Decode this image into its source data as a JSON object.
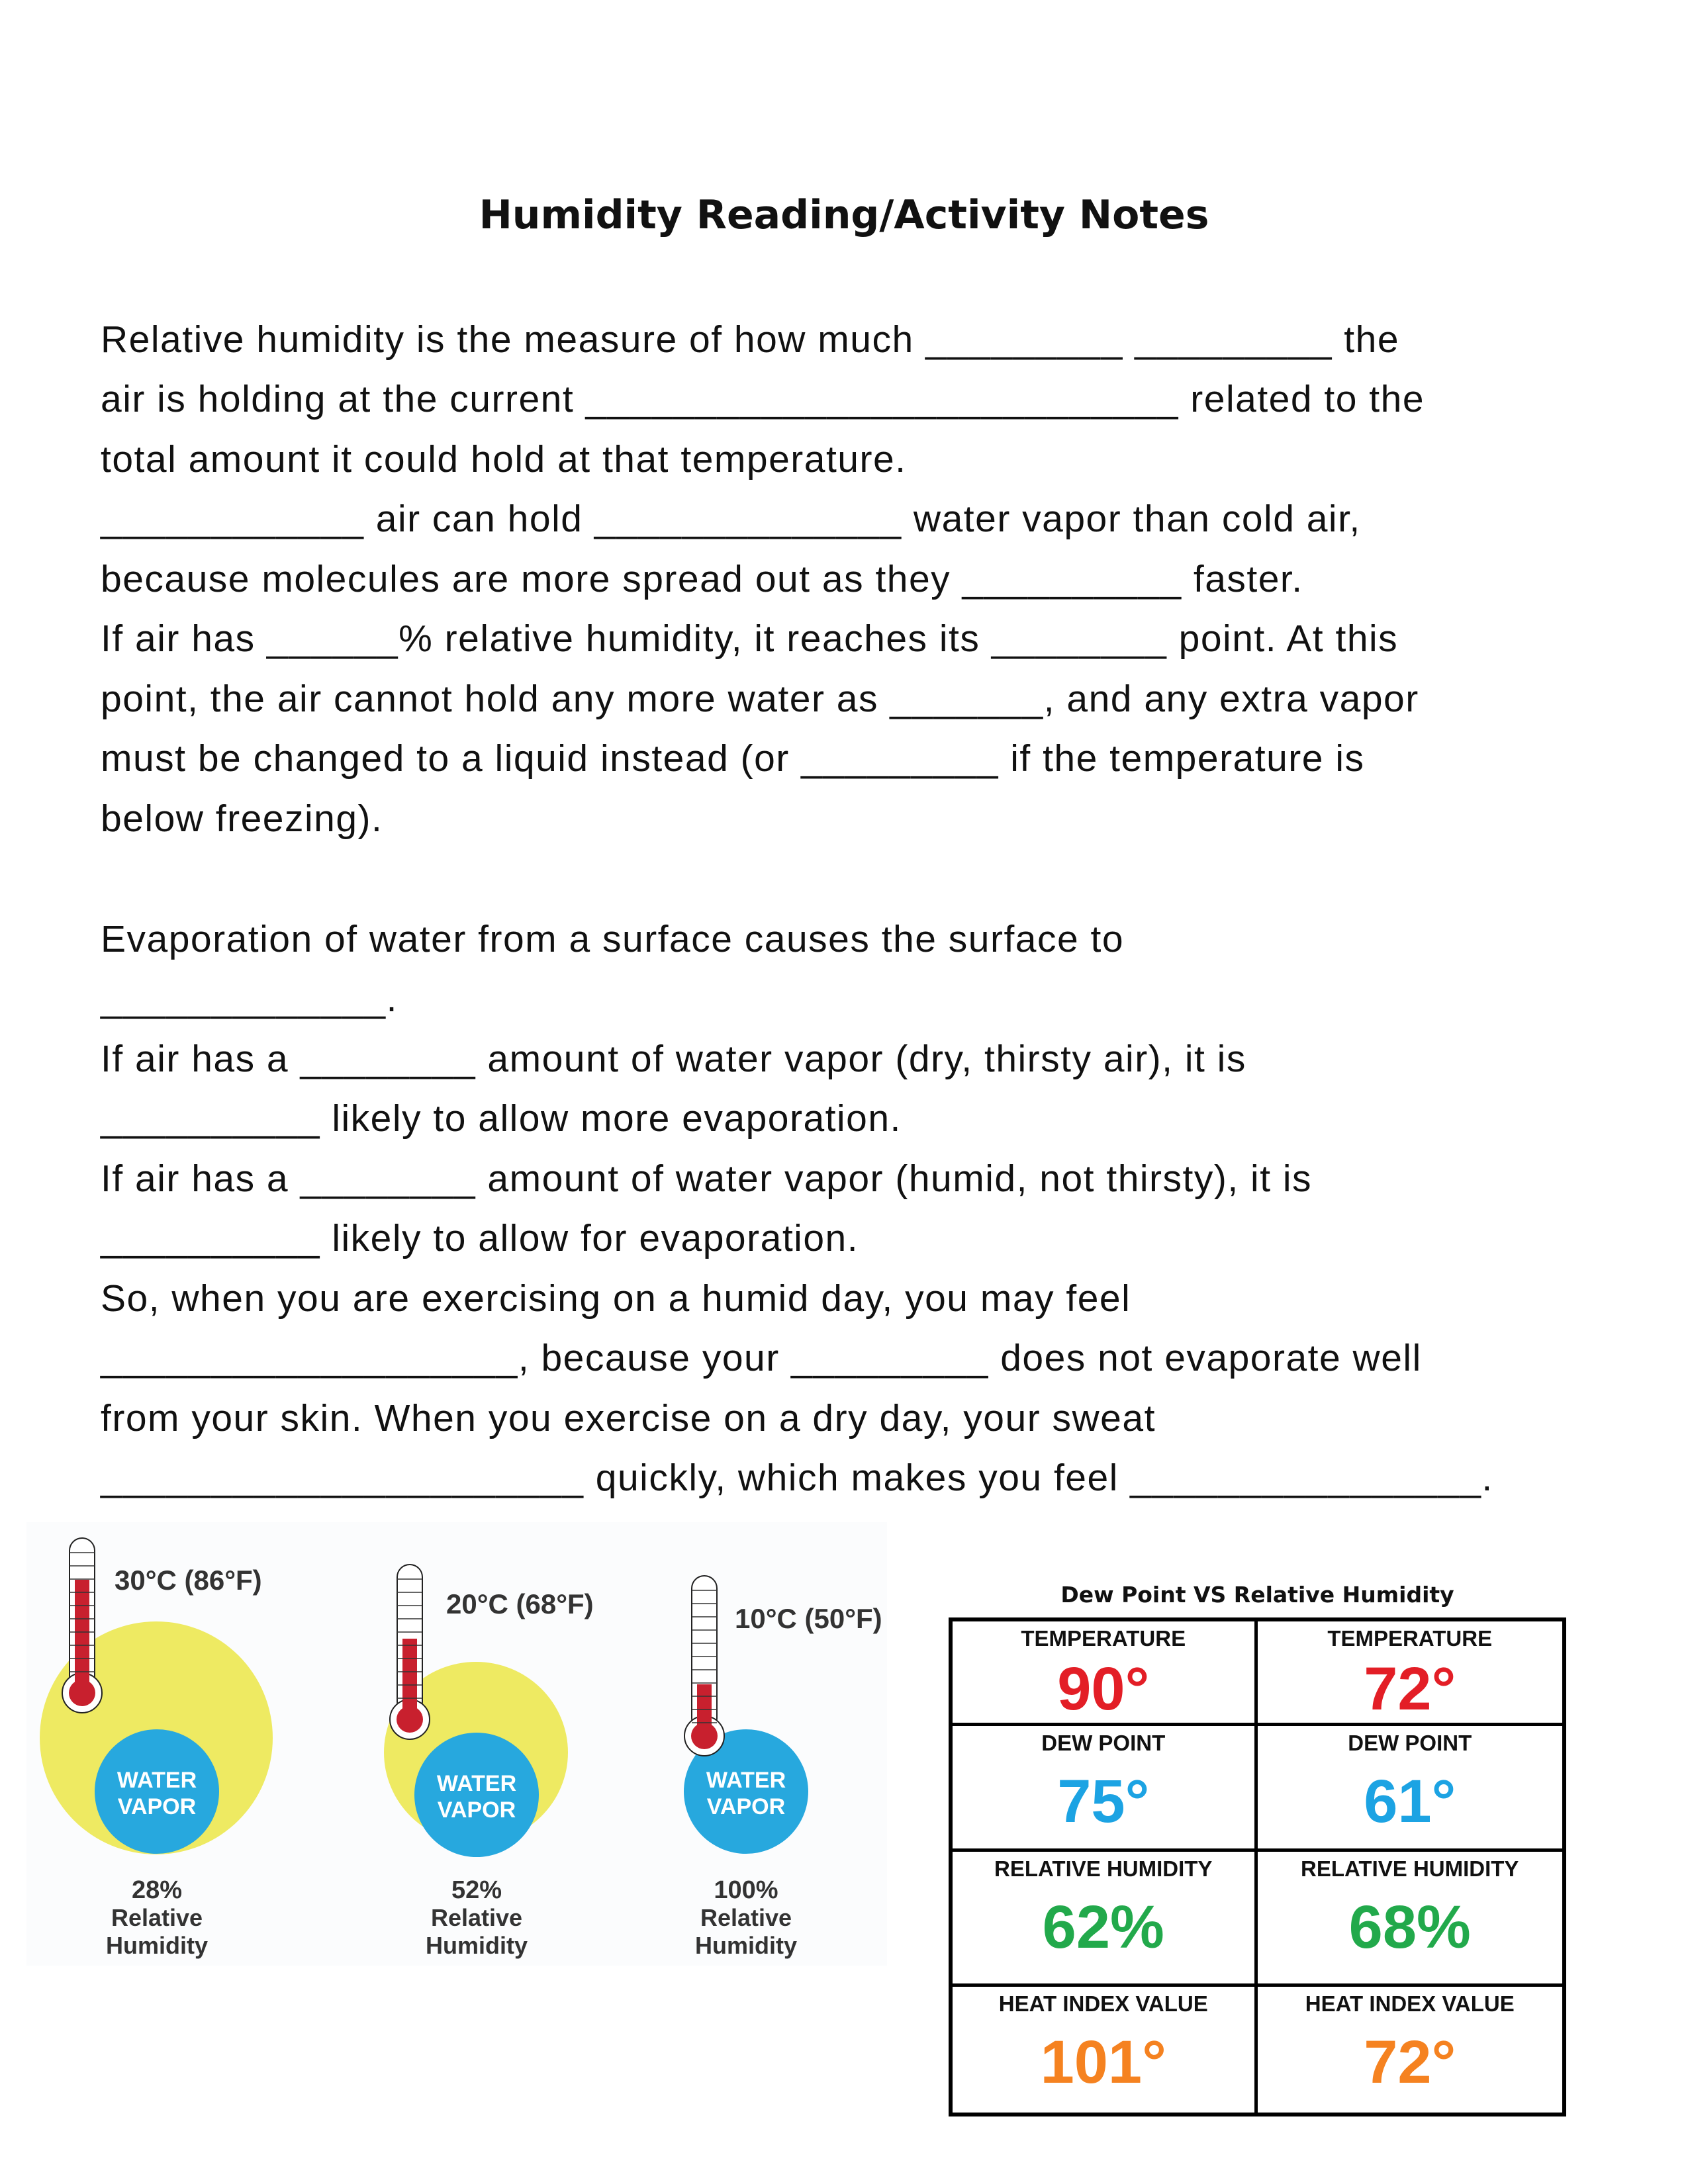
{
  "title": "Humidity Reading/Activity Notes",
  "lines": [
    "Relative humidity is the measure of how much _________ _________ the",
    "air is holding at the current ___________________________ related to the",
    "total amount it could hold at that temperature.",
    "____________ air can hold ______________ water vapor than cold air,",
    "because molecules are more spread out as they __________ faster.",
    "If air has ______% relative humidity, it reaches its ________ point.  At this",
    "point, the air cannot hold any more water as _______, and any extra vapor",
    "must be changed to a liquid instead (or _________ if the temperature is",
    "below freezing).",
    "Evaporation of water from a surface causes the surface to",
    "_____________.",
    "If air has a ________ amount of water vapor (dry, thirsty air), it is",
    "__________ likely to allow more evaporation.",
    "If air has a ________ amount of water vapor (humid, not thirsty), it is",
    "__________ likely to allow for evaporation.",
    "So, when you are exercising on a humid day, you may feel",
    "___________________, because your _________ does not evaporate well",
    "from your skin. When you exercise on a dry day, your sweat",
    "______________________ quickly, which makes you feel ________________."
  ],
  "figure": {
    "panels": [
      {
        "temp": "30°C (86°F)",
        "vapor_label": [
          "WATER",
          "VAPOR"
        ],
        "percent": "28%",
        "label1": "Relative",
        "label2": "Humidity"
      },
      {
        "temp": "20°C (68°F)",
        "vapor_label": [
          "WATER",
          "VAPOR"
        ],
        "percent": "52%",
        "label1": "Relative",
        "label2": "Humidity"
      },
      {
        "temp": "10°C (50°F)",
        "vapor_label": [
          "WATER",
          "VAPOR"
        ],
        "percent": "100%",
        "label1": "Relative",
        "label2": "Humidity"
      }
    ],
    "colors": {
      "air": "#EEEA62",
      "vapor": "#27A8DE",
      "mercury": "#C8202E"
    }
  },
  "table": {
    "title": "Dew Point VS Relative Humidity",
    "cells": [
      {
        "label": "TEMPERATURE",
        "value": "90°",
        "color": "#E31E26"
      },
      {
        "label": "TEMPERATURE",
        "value": "72°",
        "color": "#E31E26"
      },
      {
        "label": "DEW POINT",
        "value": "75°",
        "color": "#1CA3E3"
      },
      {
        "label": "DEW POINT",
        "value": "61°",
        "color": "#1CA3E3"
      },
      {
        "label": "RELATIVE HUMIDITY",
        "value": "62%",
        "color": "#22A94B"
      },
      {
        "label": "RELATIVE HUMIDITY",
        "value": "68%",
        "color": "#22A94B"
      },
      {
        "label": "HEAT INDEX VALUE",
        "value": "101°",
        "color": "#F58220"
      },
      {
        "label": "HEAT INDEX VALUE",
        "value": "72°",
        "color": "#F58220"
      }
    ]
  }
}
